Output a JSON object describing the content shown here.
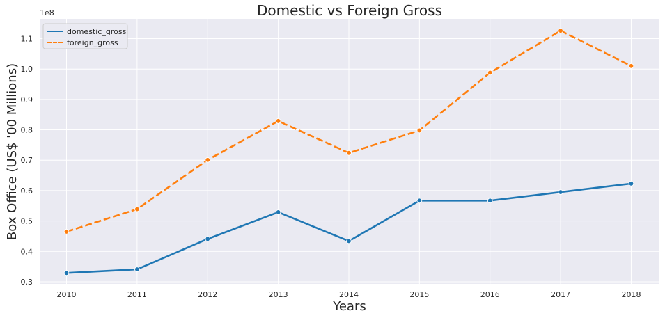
{
  "chart_data": {
    "type": "line",
    "title": "Domestic vs Foreign Gross",
    "xlabel": "Years",
    "ylabel": "Box Office (US$ '00 Millions)",
    "y_offset_text": "1e8",
    "x": [
      "2010",
      "2011",
      "2012",
      "2013",
      "2014",
      "2015",
      "2016",
      "2017",
      "2018"
    ],
    "xlim": [
      -0.38,
      8.4
    ],
    "ylim": [
      0.293,
      1.163
    ],
    "yticks": [
      0.3,
      0.4,
      0.5,
      0.6,
      0.7,
      0.8,
      0.9,
      1.0,
      1.1
    ],
    "ytick_labels": [
      "0.3",
      "0.4",
      "0.5",
      "0.6",
      "0.7",
      "0.8",
      "0.9",
      "1.0",
      "1.1"
    ],
    "grid": true,
    "legend_position": "top-left",
    "series": [
      {
        "name": "domestic_gross",
        "color": "#1f77b4",
        "dash": "solid",
        "values": [
          0.329,
          0.341,
          0.441,
          0.529,
          0.434,
          0.567,
          0.567,
          0.595,
          0.623
        ]
      },
      {
        "name": "foreign_gross",
        "color": "#ff7f0e",
        "dash": "dashed",
        "values": [
          0.465,
          0.539,
          0.701,
          0.829,
          0.724,
          0.798,
          0.988,
          1.126,
          1.01
        ]
      }
    ],
    "background_color": "#eaeaf2",
    "grid_color": "#ffffff"
  }
}
